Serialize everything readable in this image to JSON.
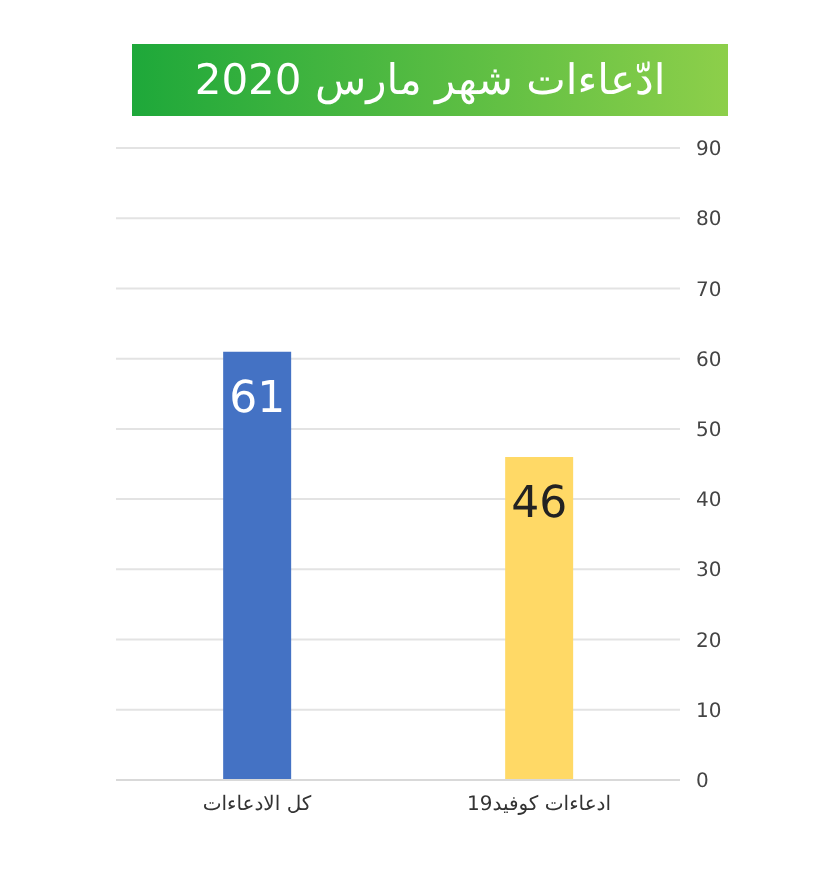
{
  "chart_data": {
    "type": "bar",
    "title": "ادّعاءات شهر مارس 2020",
    "categories": [
      "كل الادعاءات",
      "ادعاءات كوفيد19"
    ],
    "values": [
      61,
      46
    ],
    "colors": [
      "#4472c4",
      "#ffd966"
    ],
    "ylim": [
      0,
      90
    ],
    "yticks": [
      0,
      10,
      20,
      30,
      40,
      50,
      60,
      70,
      80,
      90
    ],
    "grid": "y",
    "data_labels": true
  }
}
